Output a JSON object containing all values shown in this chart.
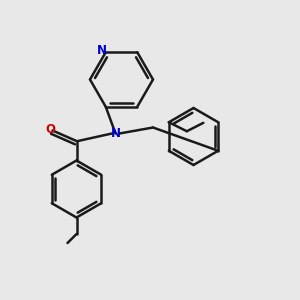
{
  "background_color": "#e8e8e8",
  "bond_color": "#1a1a1a",
  "N_color": "#0000cc",
  "O_color": "#cc0000",
  "bond_width": 1.8,
  "figsize": [
    3.0,
    3.0
  ],
  "dpi": 100,
  "xlim": [
    0,
    10
  ],
  "ylim": [
    0,
    10
  ]
}
